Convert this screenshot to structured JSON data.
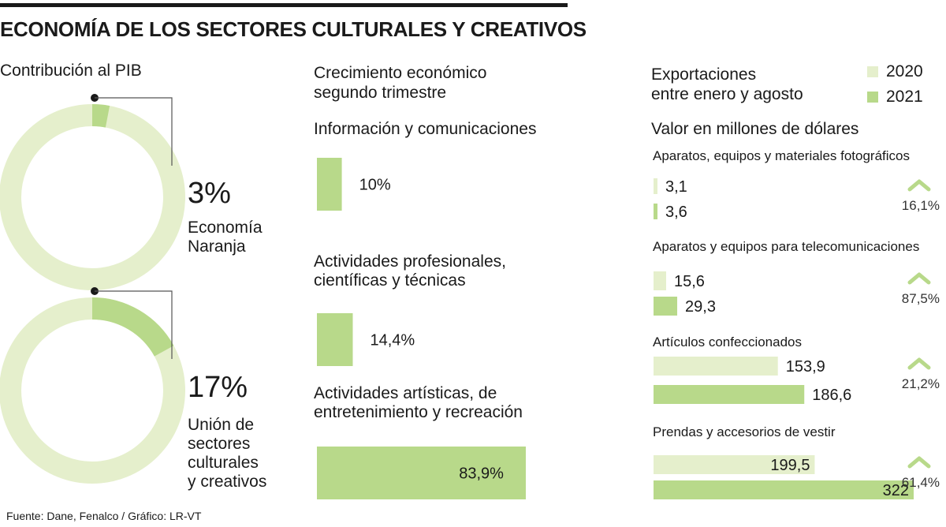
{
  "header": {
    "title": "ECONOMÍA DE LOS SECTORES CULTURALES Y CREATIVOS",
    "source": "Fuente: Dane, Fenalco / Gráfico: LR-VT"
  },
  "colors": {
    "light": "#e5efcc",
    "dark": "#b8d98a",
    "text": "#1a1a1a"
  },
  "pib": {
    "heading": "Contribución al PIB",
    "items": [
      {
        "value": "3%",
        "label_line1": "Economía",
        "label_line2": "Naranja",
        "label_line3": "",
        "label_line4": ""
      },
      {
        "value": "17%",
        "label_line1": "Unión de",
        "label_line2": "sectores",
        "label_line3": "culturales",
        "label_line4": "y creativos"
      }
    ]
  },
  "growth": {
    "heading_line1": "Crecimiento económico",
    "heading_line2": "segundo trimestre",
    "items": [
      {
        "name_line1": "Información y comunicaciones",
        "name_line2": "",
        "label": "10%"
      },
      {
        "name_line1": "Actividades profesionales,",
        "name_line2": "científicas y técnicas",
        "label": "14,4%"
      },
      {
        "name_line1": "Actividades artísticas, de",
        "name_line2": "entretenimiento y recreación",
        "label": "83,9%"
      }
    ]
  },
  "exports": {
    "heading_line1": "Exportaciones",
    "heading_line2": "entre enero y agosto",
    "unit": "Valor en millones de dólares",
    "legend": [
      {
        "label": "2020"
      },
      {
        "label": "2021"
      }
    ],
    "items": [
      {
        "category": "Aparatos, equipos y materiales fotográficos",
        "v2020": "3,1",
        "v2021": "3,6",
        "change": "16,1%"
      },
      {
        "category": "Aparatos y equipos para telecomunicaciones",
        "v2020": "15,6",
        "v2021": "29,3",
        "change": "87,5%"
      },
      {
        "category": "Artículos confeccionados",
        "v2020": "153,9",
        "v2021": "186,6",
        "change": "21,2%"
      },
      {
        "category": "Prendas y accesorios de vestir",
        "v2020": "199,5",
        "v2021": "322",
        "change": "61,4%"
      }
    ]
  },
  "chart_data": [
    {
      "type": "pie",
      "title": "Contribución al PIB",
      "categories": [
        "Economía Naranja",
        "Unión de sectores culturales y creativos"
      ],
      "values": [
        3,
        17
      ],
      "unit": "%"
    },
    {
      "type": "bar",
      "title": "Crecimiento económico segundo trimestre",
      "categories": [
        "Información y comunicaciones",
        "Actividades profesionales, científicas y técnicas",
        "Actividades artísticas, de entretenimiento y recreación"
      ],
      "values": [
        10,
        14.4,
        83.9
      ],
      "unit": "%"
    },
    {
      "type": "bar",
      "title": "Exportaciones entre enero y agosto",
      "ylabel": "Valor en millones de dólares",
      "categories": [
        "Aparatos, equipos y materiales fotográficos",
        "Aparatos y equipos para telecomunicaciones",
        "Artículos confeccionados",
        "Prendas y accesorios de vestir"
      ],
      "series": [
        {
          "name": "2020",
          "values": [
            3.1,
            15.6,
            153.9,
            199.5
          ]
        },
        {
          "name": "2021",
          "values": [
            3.6,
            29.3,
            186.6,
            322
          ]
        }
      ],
      "changes_percent": [
        16.1,
        87.5,
        21.2,
        61.4
      ]
    }
  ]
}
